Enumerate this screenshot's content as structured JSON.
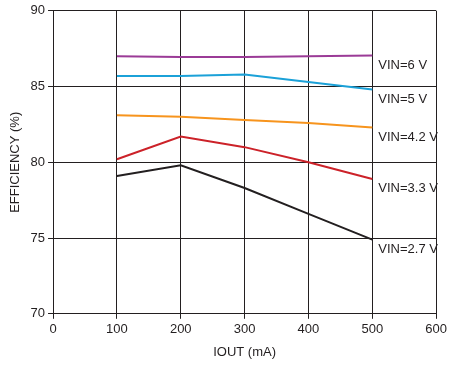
{
  "chart_data": {
    "type": "line",
    "x_label": "IOUT (mA)",
    "y_label": "EFFICIENCY (%)",
    "x": [
      100,
      200,
      300,
      400,
      500
    ],
    "series": [
      {
        "name": "VIN=6 V",
        "color": "#9b3b97",
        "values": [
          87.0,
          86.95,
          86.95,
          87.0,
          87.05
        ]
      },
      {
        "name": "VIN=5 V",
        "color": "#1ba1d8",
        "values": [
          85.7,
          85.7,
          85.8,
          85.3,
          84.8
        ]
      },
      {
        "name": "VIN=4.2 V",
        "color": "#f7941d",
        "values": [
          83.1,
          83.0,
          82.8,
          82.6,
          82.3
        ]
      },
      {
        "name": "VIN=3.3 V",
        "color": "#cc2229",
        "values": [
          80.2,
          81.7,
          81.0,
          80.0,
          78.9
        ]
      },
      {
        "name": "VIN=2.7 V",
        "color": "#231f20",
        "values": [
          79.1,
          79.8,
          78.3,
          76.6,
          74.9
        ]
      }
    ],
    "xlim": [
      0,
      600
    ],
    "xticks": [
      0,
      100,
      200,
      300,
      400,
      500,
      600
    ],
    "ylim": [
      70,
      90
    ],
    "yticks": [
      70,
      75,
      80,
      85,
      90
    ],
    "grid": true
  }
}
